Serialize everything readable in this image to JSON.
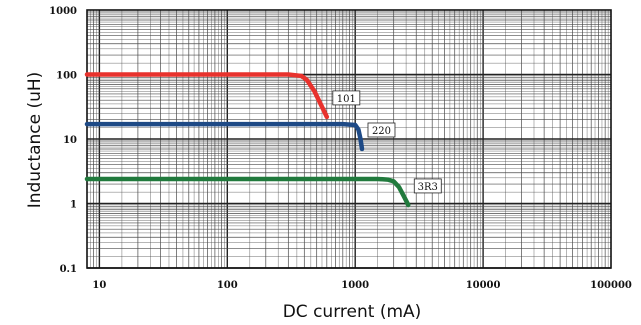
{
  "chart_data": {
    "type": "line",
    "title": "",
    "xlabel": "DC current (mA)",
    "ylabel": "Inductance (uH)",
    "x_scale": "log",
    "y_scale": "log",
    "xlim": [
      8,
      100000
    ],
    "ylim": [
      0.1,
      1000
    ],
    "grid": true,
    "x_ticks": [
      "10",
      "100",
      "1000",
      "10000",
      "100000"
    ],
    "y_ticks": [
      "0.1",
      "1",
      "10",
      "100",
      "1000"
    ],
    "series": [
      {
        "name": "101",
        "color": "#e8322d",
        "x": [
          8,
          100,
          300,
          380,
          420,
          480,
          540,
          600
        ],
        "y": [
          100,
          100,
          100,
          95,
          82,
          55,
          34,
          22
        ]
      },
      {
        "name": "220",
        "color": "#1e4a86",
        "x": [
          8,
          100,
          500,
          800,
          1000,
          1060,
          1100,
          1130
        ],
        "y": [
          17,
          17,
          17,
          17,
          16.5,
          14,
          10,
          7
        ]
      },
      {
        "name": "3R3",
        "color": "#217a3d",
        "x": [
          8,
          100,
          1000,
          1500,
          1800,
          2000,
          2200,
          2400,
          2600
        ],
        "y": [
          2.4,
          2.4,
          2.4,
          2.4,
          2.35,
          2.2,
          1.8,
          1.3,
          0.95
        ]
      }
    ]
  }
}
